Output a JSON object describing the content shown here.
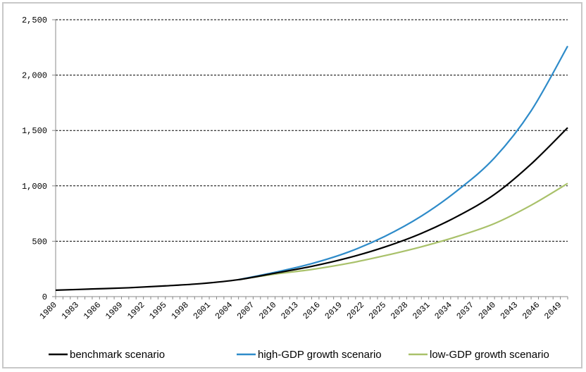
{
  "chart_data": {
    "type": "line",
    "title": "",
    "xlabel": "",
    "ylabel": "",
    "xlim": [
      1980,
      2050
    ],
    "ylim": [
      0,
      2500
    ],
    "yticks": [
      0,
      500,
      1000,
      1500,
      2000,
      2500
    ],
    "ytick_labels": [
      "0",
      "500",
      "1,000",
      "1,500",
      "2,000",
      "2,500"
    ],
    "xtick_labels": [
      "1980",
      "1983",
      "1986",
      "1989",
      "1992",
      "1995",
      "1998",
      "2001",
      "2004",
      "2007",
      "2010",
      "2013",
      "2016",
      "2019",
      "2022",
      "2025",
      "2028",
      "2031",
      "2034",
      "2037",
      "2040",
      "2043",
      "2046",
      "2049"
    ],
    "grid": "horizontal-dashed",
    "legend": "bottom",
    "series": [
      {
        "name": "benchmark scenario",
        "color": "#000000",
        "x": [
          1980,
          1985,
          1990,
          1995,
          2000,
          2005,
          2010,
          2015,
          2020,
          2025,
          2030,
          2035,
          2040,
          2045,
          2050
        ],
        "y": [
          58,
          69,
          80,
          97,
          118,
          153,
          212,
          273,
          350,
          448,
          571,
          728,
          923,
          1197,
          1525
        ]
      },
      {
        "name": "high-GDP growth scenario",
        "color": "#2e8bc9",
        "x": [
          2005,
          2010,
          2015,
          2020,
          2025,
          2030,
          2035,
          2040,
          2045,
          2050
        ],
        "y": [
          153,
          220,
          298,
          402,
          544,
          727,
          962,
          1253,
          1677,
          2262
        ]
      },
      {
        "name": "low-GDP growth scenario",
        "color": "#a9c16a",
        "x": [
          2005,
          2010,
          2015,
          2020,
          2025,
          2030,
          2035,
          2040,
          2045,
          2050
        ],
        "y": [
          153,
          203,
          245,
          300,
          370,
          450,
          545,
          660,
          825,
          1022
        ]
      }
    ]
  }
}
